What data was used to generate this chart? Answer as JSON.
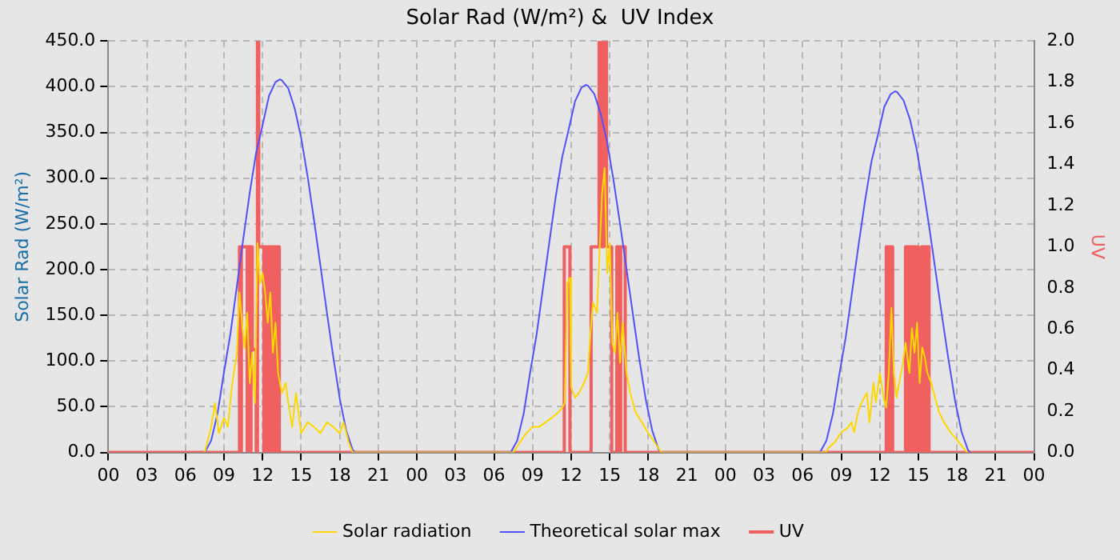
{
  "chart_data": {
    "type": "line",
    "title": "Solar Rad (W/m²) &  UV Index",
    "ylabel": "Solar Rad (W/m²)",
    "y2label": "UV",
    "xlim": [
      0,
      72
    ],
    "xticks": [
      {
        "value": 0,
        "label": "00"
      },
      {
        "value": 3,
        "label": "03"
      },
      {
        "value": 6,
        "label": "06"
      },
      {
        "value": 9,
        "label": "09"
      },
      {
        "value": 12,
        "label": "12"
      },
      {
        "value": 15,
        "label": "15"
      },
      {
        "value": 18,
        "label": "18"
      },
      {
        "value": 21,
        "label": "21"
      },
      {
        "value": 24,
        "label": "00"
      },
      {
        "value": 27,
        "label": "03"
      },
      {
        "value": 30,
        "label": "06"
      },
      {
        "value": 33,
        "label": "09"
      },
      {
        "value": 36,
        "label": "12"
      },
      {
        "value": 39,
        "label": "15"
      },
      {
        "value": 42,
        "label": "18"
      },
      {
        "value": 45,
        "label": "21"
      },
      {
        "value": 48,
        "label": "00"
      },
      {
        "value": 51,
        "label": "03"
      },
      {
        "value": 54,
        "label": "06"
      },
      {
        "value": 57,
        "label": "09"
      },
      {
        "value": 60,
        "label": "12"
      },
      {
        "value": 63,
        "label": "15"
      },
      {
        "value": 66,
        "label": "18"
      },
      {
        "value": 69,
        "label": "21"
      },
      {
        "value": 72,
        "label": "00"
      }
    ],
    "ylim": [
      0,
      450
    ],
    "yticks": [
      {
        "value": 0,
        "label": "0.0"
      },
      {
        "value": 50,
        "label": "50.0"
      },
      {
        "value": 100,
        "label": "100.0"
      },
      {
        "value": 150,
        "label": "150.0"
      },
      {
        "value": 200,
        "label": "200.0"
      },
      {
        "value": 250,
        "label": "250.0"
      },
      {
        "value": 300,
        "label": "300.0"
      },
      {
        "value": 350,
        "label": "350.0"
      },
      {
        "value": 400,
        "label": "400.0"
      },
      {
        "value": 450,
        "label": "450.0"
      }
    ],
    "y2lim": [
      0,
      2
    ],
    "y2ticks": [
      {
        "value": 0,
        "label": "0.0"
      },
      {
        "value": 0.2,
        "label": "0.2"
      },
      {
        "value": 0.4,
        "label": "0.4"
      },
      {
        "value": 0.6,
        "label": "0.6"
      },
      {
        "value": 0.8,
        "label": "0.8"
      },
      {
        "value": 1,
        "label": "1.0"
      },
      {
        "value": 1.2,
        "label": "1.2"
      },
      {
        "value": 1.4,
        "label": "1.4"
      },
      {
        "value": 1.6,
        "label": "1.6"
      },
      {
        "value": 1.8,
        "label": "1.8"
      },
      {
        "value": 2,
        "label": "2.0"
      }
    ],
    "grid": true,
    "legend": "bottom",
    "line_style": "solid",
    "series": [
      {
        "name": "Solar radiation",
        "color": "#ffd700",
        "x": [
          7.5,
          8,
          8.3,
          8.6,
          9,
          9.3,
          9.6,
          10,
          10.2,
          10.4,
          10.6,
          10.8,
          11,
          11.2,
          11.4,
          11.6,
          11.8,
          12,
          12.2,
          12.4,
          12.6,
          12.8,
          13,
          13.2,
          13.5,
          13.8,
          14,
          14.3,
          14.6,
          15,
          15.5,
          16,
          16.5,
          17,
          17.5,
          18,
          18.3,
          18.7,
          19,
          31.5,
          32,
          32.5,
          33,
          33.5,
          34,
          34.5,
          35,
          35.3,
          35.5,
          35.7,
          35.9,
          36,
          36.3,
          36.6,
          37,
          37.3,
          37.5,
          37.7,
          38,
          38.2,
          38.4,
          38.6,
          38.8,
          39,
          39.2,
          39.4,
          39.6,
          39.8,
          40,
          40.3,
          40.6,
          41,
          41.5,
          42,
          42.5,
          43,
          55.8,
          56,
          56.5,
          57,
          57.5,
          57.8,
          58,
          58.3,
          58.6,
          59,
          59.2,
          59.5,
          59.7,
          60,
          60.3,
          60.5,
          60.7,
          60.9,
          61.1,
          61.3,
          61.5,
          61.8,
          62,
          62.3,
          62.5,
          62.7,
          62.9,
          63.1,
          63.3,
          63.5,
          63.7,
          64,
          64.3,
          64.6,
          65,
          65.5,
          66,
          66.5,
          66.8
        ],
        "values": [
          0,
          28,
          54,
          21,
          38,
          28,
          71,
          109,
          175,
          142,
          114,
          153,
          76,
          109,
          54,
          229,
          185,
          196,
          175,
          142,
          175,
          109,
          142,
          87,
          65,
          76,
          54,
          28,
          65,
          21,
          33,
          28,
          21,
          33,
          28,
          21,
          33,
          11,
          0,
          0,
          11,
          21,
          28,
          28,
          33,
          38,
          44,
          49,
          54,
          185,
          191,
          71,
          60,
          65,
          76,
          87,
          131,
          164,
          153,
          218,
          283,
          311,
          196,
          229,
          120,
          109,
          153,
          98,
          142,
          87,
          65,
          44,
          33,
          21,
          11,
          0,
          0,
          5,
          11,
          22,
          27,
          33,
          22,
          44,
          55,
          65,
          33,
          76,
          55,
          87,
          60,
          49,
          87,
          158,
          87,
          60,
          76,
          98,
          120,
          87,
          136,
          109,
          142,
          76,
          115,
          104,
          87,
          76,
          60,
          44,
          33,
          22,
          14,
          5,
          0
        ]
      },
      {
        "name": "Theoretical solar max",
        "color": "#5050ff",
        "x": [
          7.5,
          8,
          8.5,
          9,
          9.5,
          10,
          10.5,
          11,
          11.5,
          12,
          12.5,
          13,
          13.35,
          13.5,
          14,
          14.5,
          15,
          15.5,
          16,
          16.5,
          17,
          17.5,
          18,
          18.5,
          19,
          19.2,
          31.3,
          31.8,
          32.3,
          32.8,
          33.3,
          33.8,
          34.3,
          34.8,
          35.3,
          35.8,
          36.3,
          36.8,
          37.15,
          37.3,
          37.8,
          38.3,
          38.8,
          39.3,
          39.8,
          40.3,
          40.8,
          41.3,
          41.8,
          42.3,
          42.8,
          43,
          55.35,
          55.85,
          56.35,
          56.85,
          57.35,
          57.85,
          58.35,
          58.85,
          59.35,
          59.85,
          60.35,
          60.85,
          61.2,
          61.35,
          61.85,
          62.35,
          62.85,
          63.35,
          63.85,
          64.35,
          64.85,
          65.35,
          65.85,
          66.35,
          66.85,
          67.05
        ],
        "values": [
          0,
          13,
          43,
          88,
          130,
          182,
          234,
          284,
          328,
          358,
          390,
          405,
          408,
          407,
          398,
          376,
          344,
          302,
          254,
          204,
          153,
          104,
          59,
          24,
          3,
          0,
          0,
          13,
          42,
          87,
          128,
          179,
          230,
          280,
          323,
          353,
          384,
          399,
          402,
          401,
          392,
          370,
          339,
          297,
          250,
          201,
          151,
          102,
          58,
          24,
          3,
          0,
          0,
          13,
          42,
          85,
          126,
          176,
          227,
          275,
          318,
          347,
          378,
          392,
          395,
          394,
          385,
          364,
          333,
          292,
          246,
          197,
          148,
          101,
          57,
          23,
          3,
          0
        ]
      },
      {
        "name": "UV",
        "color": "#f06060",
        "type": "step",
        "axis": "y2",
        "x": [
          0,
          10.2,
          10.3,
          10.35,
          10.8,
          10.9,
          11,
          11.1,
          11.2,
          11.5,
          11.6,
          11.7,
          12.1,
          12.2,
          12.3,
          12.4,
          12.5,
          12.6,
          12.7,
          12.8,
          12.9,
          13,
          13.1,
          13.2,
          13.3,
          35.46,
          35.9,
          37.55,
          38.17,
          38.4,
          38.5,
          38.75,
          39.15,
          39.55,
          39.75,
          39.85,
          40.2,
          60.5,
          60.6,
          60.7,
          60.8,
          60.9,
          61,
          62,
          62.1,
          62.2,
          62.3,
          62.4,
          62.5,
          62.6,
          62.7,
          62.8,
          63,
          63.25,
          63.35,
          63.45,
          63.55,
          63.65,
          63.83,
          72
        ],
        "values": [
          0,
          1,
          0,
          1,
          0,
          1,
          0,
          1,
          0.5,
          0,
          2,
          1,
          0,
          1,
          0,
          1,
          0,
          1,
          0,
          1,
          0,
          1,
          0,
          1,
          0,
          1,
          0,
          1,
          2,
          1,
          2,
          1,
          0,
          1,
          0,
          1,
          0,
          1,
          0,
          1,
          0,
          1,
          0,
          1,
          0,
          1,
          0,
          1,
          0,
          1,
          0,
          1,
          0,
          1,
          0,
          1,
          0,
          1,
          0,
          0
        ]
      }
    ]
  }
}
